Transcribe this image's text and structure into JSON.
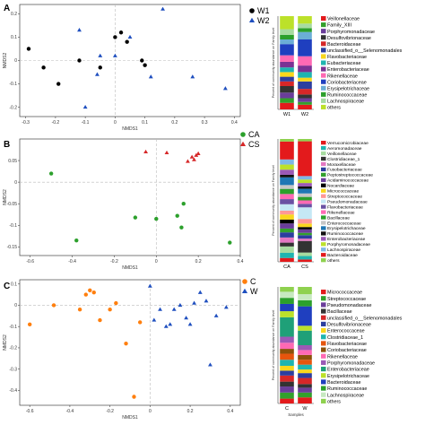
{
  "panels": [
    {
      "letter": "A",
      "nmds": {
        "type": "scatter",
        "xlabel": "NMDS1",
        "ylabel": "NMDS2",
        "xlim": [
          -0.32,
          0.42
        ],
        "ylim": [
          -0.24,
          0.24
        ],
        "xticks": [
          -0.3,
          -0.2,
          -0.1,
          0.0,
          0.1,
          0.2,
          0.3,
          0.4
        ],
        "yticks": [
          -0.2,
          -0.1,
          0.0,
          0.1,
          0.2
        ],
        "series": [
          {
            "name": "W1",
            "marker": "circle",
            "color": "#000000",
            "x": [
              -0.29,
              -0.24,
              -0.19,
              -0.12,
              -0.05,
              0.0,
              0.02,
              0.04,
              0.09,
              0.1
            ],
            "y": [
              0.05,
              -0.03,
              -0.1,
              0.0,
              -0.03,
              0.1,
              0.12,
              0.08,
              0.0,
              -0.02
            ]
          },
          {
            "name": "W2",
            "marker": "triangle",
            "color": "#1f4fbf",
            "x": [
              -0.12,
              -0.1,
              -0.06,
              -0.05,
              0.0,
              0.05,
              0.12,
              0.16,
              0.26,
              0.37
            ],
            "y": [
              0.13,
              -0.2,
              -0.06,
              0.02,
              0.02,
              0.1,
              -0.07,
              0.22,
              -0.07,
              -0.12
            ]
          }
        ]
      },
      "bar": {
        "type": "bar",
        "ylabel": "Percent of community abundance on Family level",
        "categories": [
          "W1",
          "W2"
        ],
        "series": [
          {
            "name": "Veillonellaceae",
            "color": "#e31a1c",
            "values": [
              0.07,
              0.05
            ]
          },
          {
            "name": "Family_XIII",
            "color": "#33a02c",
            "values": [
              0.05,
              0.03
            ]
          },
          {
            "name": "Porphyromonadaceae",
            "color": "#6a3d9a",
            "values": [
              0.06,
              0.04
            ]
          },
          {
            "name": "Desulfovibrionaceae",
            "color": "#333333",
            "values": [
              0.07,
              0.04
            ]
          },
          {
            "name": "Bacteroidaceae",
            "color": "#d62728",
            "values": [
              0.05,
              0.06
            ]
          },
          {
            "name": "unclassified_o__Selenomonadales",
            "color": "#2c3e9f",
            "values": [
              0.05,
              0.08
            ]
          },
          {
            "name": "Flavobacteriaceae",
            "color": "#f9d71c",
            "values": [
              0.05,
              0.04
            ]
          },
          {
            "name": "Eubacteriaceae",
            "color": "#1fb5b0",
            "values": [
              0.05,
              0.06
            ]
          },
          {
            "name": "Enterobacteriaceae",
            "color": "#7b3294",
            "values": [
              0.06,
              0.07
            ]
          },
          {
            "name": "Rikenellaceae",
            "color": "#ff69b4",
            "values": [
              0.07,
              0.1
            ]
          },
          {
            "name": "Coriobacteriaceae",
            "color": "#1f3fbf",
            "values": [
              0.12,
              0.18
            ]
          },
          {
            "name": "Erysipelotrichaceae",
            "color": "#6baed6",
            "values": [
              0.05,
              0.08
            ]
          },
          {
            "name": "Ruminococcaceae",
            "color": "#2ca02c",
            "values": [
              0.05,
              0.04
            ]
          },
          {
            "name": "Lachnospiraceae",
            "color": "#a6dba0",
            "values": [
              0.06,
              0.05
            ]
          },
          {
            "name": "others",
            "color": "#bce12a",
            "values": [
              0.14,
              0.08
            ]
          }
        ]
      }
    },
    {
      "letter": "B",
      "nmds": {
        "type": "scatter",
        "xlabel": "NMDS1",
        "ylabel": "NMDS2",
        "xlim": [
          -0.65,
          0.4
        ],
        "ylim": [
          -0.17,
          0.1
        ],
        "xticks": [
          -0.6,
          -0.4,
          -0.2,
          0.0,
          0.2,
          0.4
        ],
        "yticks": [
          -0.15,
          -0.1,
          -0.05,
          0.0,
          0.05
        ],
        "series": [
          {
            "name": "CA",
            "marker": "circle",
            "color": "#2ca02c",
            "x": [
              -0.5,
              -0.38,
              -0.1,
              0.0,
              0.1,
              0.12,
              0.13,
              0.35
            ],
            "y": [
              0.02,
              -0.135,
              -0.082,
              -0.085,
              -0.078,
              -0.105,
              -0.05,
              -0.14
            ]
          },
          {
            "name": "CS",
            "marker": "triangle",
            "color": "#d62728",
            "x": [
              -0.05,
              0.05,
              0.15,
              0.17,
              0.18,
              0.19,
              0.2
            ],
            "y": [
              0.07,
              0.068,
              0.048,
              0.058,
              0.052,
              0.062,
              0.066
            ]
          }
        ]
      },
      "bar": {
        "type": "bar",
        "ylabel": "Percent of community abundance on Family level",
        "categories": [
          "CA",
          "CS"
        ],
        "series": [
          {
            "name": "Verrucomicrobiaceae",
            "color": "#e31a1c",
            "values": [
              0.03,
              0.02
            ]
          },
          {
            "name": "Aeromonadaceae",
            "color": "#1fb5b0",
            "values": [
              0.04,
              0.03
            ]
          },
          {
            "name": "Veillonellaceae",
            "color": "#a6dba0",
            "values": [
              0.05,
              0.03
            ]
          },
          {
            "name": "Clostridiaceae_1",
            "color": "#333333",
            "values": [
              0.03,
              0.1
            ]
          },
          {
            "name": "Moraxellaceae",
            "color": "#e377c2",
            "values": [
              0.04,
              0.02
            ]
          },
          {
            "name": "Fusobacteriaceae",
            "color": "#2c3e9f",
            "values": [
              0.04,
              0.03
            ]
          },
          {
            "name": "Peptostreptococcaceae",
            "color": "#33a02c",
            "values": [
              0.03,
              0.02
            ]
          },
          {
            "name": "Acidaminococcaceae",
            "color": "#6a3d9a",
            "values": [
              0.04,
              0.03
            ]
          },
          {
            "name": "Nocardiaceae",
            "color": "#000000",
            "values": [
              0.03,
              0.02
            ]
          },
          {
            "name": "Micrococcaceae",
            "color": "#f9d71c",
            "values": [
              0.04,
              0.03
            ]
          },
          {
            "name": "Streptococcaceae",
            "color": "#ff9896",
            "values": [
              0.03,
              0.04
            ]
          },
          {
            "name": "Pseudomonadaceae",
            "color": "#c5e8f5",
            "values": [
              0.05,
              0.1
            ]
          },
          {
            "name": "Flavobacteriaceae",
            "color": "#6a51a3",
            "values": [
              0.04,
              0.03
            ]
          },
          {
            "name": "Rikenellaceae",
            "color": "#ff69b4",
            "values": [
              0.04,
              0.03
            ]
          },
          {
            "name": "Bacillaceae",
            "color": "#2ca02c",
            "values": [
              0.04,
              0.03
            ]
          },
          {
            "name": "Enterococcaceae",
            "color": "#c7c7c7",
            "values": [
              0.03,
              0.03
            ]
          },
          {
            "name": "Erysipelotrichaceae",
            "color": "#1f77b4",
            "values": [
              0.06,
              0.04
            ]
          },
          {
            "name": "Ruminococcaceae",
            "color": "#111111",
            "values": [
              0.02,
              0.02
            ]
          },
          {
            "name": "Enterobacteriaceae",
            "color": "#9b59b6",
            "values": [
              0.04,
              0.03
            ]
          },
          {
            "name": "Porphyromonadaceae",
            "color": "#bce12a",
            "values": [
              0.04,
              0.03
            ]
          },
          {
            "name": "Lachnospiraceae",
            "color": "#7fb8e6",
            "values": [
              0.04,
              0.03
            ]
          },
          {
            "name": "Bacteroidaceae",
            "color": "#e31a1c",
            "values": [
              0.14,
              0.3
            ]
          },
          {
            "name": "others",
            "color": "#8fd14f",
            "values": [
              0.02,
              0.02
            ]
          }
        ]
      }
    },
    {
      "letter": "C",
      "nmds": {
        "type": "scatter",
        "xlabel": "NMDS1",
        "ylabel": "NMDS2",
        "xlim": [
          -0.65,
          0.45
        ],
        "ylim": [
          -0.47,
          0.12
        ],
        "xticks": [
          -0.6,
          -0.4,
          -0.2,
          0.0,
          0.2,
          0.4
        ],
        "yticks": [
          -0.4,
          -0.3,
          -0.2,
          -0.1,
          0.0,
          0.1
        ],
        "series": [
          {
            "name": "C",
            "marker": "circle",
            "color": "#ff7f0e",
            "x": [
              -0.6,
              -0.48,
              -0.35,
              -0.32,
              -0.3,
              -0.28,
              -0.25,
              -0.2,
              -0.17,
              -0.12,
              -0.08,
              -0.05
            ],
            "y": [
              -0.09,
              0.0,
              -0.02,
              0.05,
              0.07,
              0.06,
              -0.07,
              -0.02,
              0.01,
              -0.18,
              -0.43,
              -0.08
            ]
          },
          {
            "name": "W",
            "marker": "triangle",
            "color": "#1f4fbf",
            "x": [
              0.0,
              0.02,
              0.05,
              0.08,
              0.1,
              0.12,
              0.15,
              0.18,
              0.2,
              0.22,
              0.25,
              0.28,
              0.3,
              0.33,
              0.38
            ],
            "y": [
              0.09,
              -0.07,
              -0.02,
              -0.1,
              -0.09,
              -0.02,
              0.0,
              -0.06,
              -0.09,
              0.01,
              0.06,
              0.02,
              -0.28,
              -0.05,
              -0.01
            ]
          }
        ]
      },
      "bar": {
        "type": "bar",
        "ylabel": "Percent of community abundance on Family level",
        "xlabel": "Samples",
        "categories": [
          "C",
          "W"
        ],
        "series": [
          {
            "name": "Micrococcaceae",
            "color": "#e31a1c",
            "values": [
              0.04,
              0.05
            ]
          },
          {
            "name": "Streptococcaceae",
            "color": "#33a02c",
            "values": [
              0.05,
              0.04
            ]
          },
          {
            "name": "Pseudomonadaceae",
            "color": "#6a3d9a",
            "values": [
              0.05,
              0.04
            ]
          },
          {
            "name": "Bacillaceae",
            "color": "#333333",
            "values": [
              0.04,
              0.03
            ]
          },
          {
            "name": "unclassified_o__Selenomonadales",
            "color": "#d62728",
            "values": [
              0.05,
              0.05
            ]
          },
          {
            "name": "Desulfovibrionaceae",
            "color": "#2c3e9f",
            "values": [
              0.04,
              0.04
            ]
          },
          {
            "name": "Enterococcaceae",
            "color": "#f9d71c",
            "values": [
              0.04,
              0.03
            ]
          },
          {
            "name": "Clostridiaceae_1",
            "color": "#1fb5b0",
            "values": [
              0.05,
              0.04
            ]
          },
          {
            "name": "Flavobacteriaceae",
            "color": "#e6550d",
            "values": [
              0.05,
              0.04
            ]
          },
          {
            "name": "Coriobacteriaceae",
            "color": "#8c510a",
            "values": [
              0.04,
              0.04
            ]
          },
          {
            "name": "Rikenellaceae",
            "color": "#ff69b4",
            "values": [
              0.05,
              0.04
            ]
          },
          {
            "name": "Porphyromonadaceae",
            "color": "#9b59b6",
            "values": [
              0.05,
              0.04
            ]
          },
          {
            "name": "Enterobacteriaceae",
            "color": "#1fa078",
            "values": [
              0.16,
              0.12
            ]
          },
          {
            "name": "Erysipelotrichaceae",
            "color": "#bce12a",
            "values": [
              0.05,
              0.04
            ]
          },
          {
            "name": "Bacteroidaceae",
            "color": "#1f3fbf",
            "values": [
              0.06,
              0.16
            ]
          },
          {
            "name": "Ruminococcaceae",
            "color": "#2ca02c",
            "values": [
              0.05,
              0.05
            ]
          },
          {
            "name": "Lachnospiraceae",
            "color": "#c7e9c0",
            "values": [
              0.05,
              0.05
            ]
          },
          {
            "name": "others",
            "color": "#8fd14f",
            "values": [
              0.04,
              0.06
            ]
          }
        ]
      }
    }
  ]
}
